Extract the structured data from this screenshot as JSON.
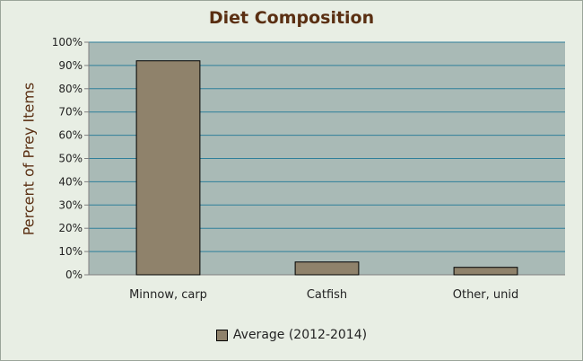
{
  "chart_data": {
    "type": "bar",
    "title": "Diet Composition",
    "xlabel": "",
    "ylabel": "Percent of Prey Items",
    "categories": [
      "Minnow, carp",
      "Catfish",
      "Other, unid"
    ],
    "series": [
      {
        "name": "Average (2012-2014)",
        "values": [
          92,
          5.5,
          3.2
        ]
      }
    ],
    "ylim": [
      0,
      100
    ],
    "y_ticks": [
      "0%",
      "10%",
      "20%",
      "30%",
      "40%",
      "50%",
      "60%",
      "70%",
      "80%",
      "90%",
      "100%"
    ],
    "grid": true,
    "legend_position": "bottom"
  },
  "colors": {
    "plot_background": "#a9bab6",
    "bar_fill": "#8f826b",
    "gridline": "#2f7f9a",
    "title": "#5a2f12"
  }
}
